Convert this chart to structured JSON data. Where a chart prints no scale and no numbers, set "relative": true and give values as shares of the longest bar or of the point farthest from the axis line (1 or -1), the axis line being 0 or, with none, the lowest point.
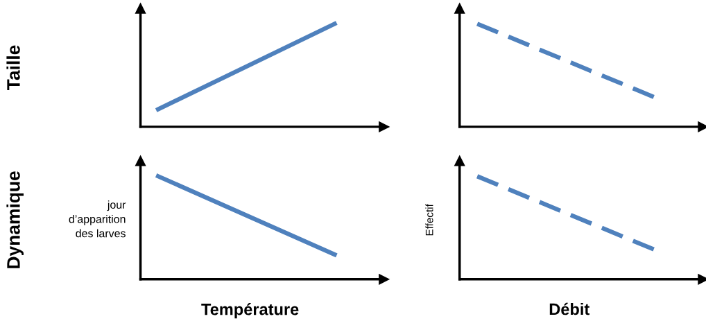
{
  "chart_data": [
    {
      "type": "line",
      "relative": true,
      "ylabel": "Taille",
      "categories": [
        null,
        null
      ],
      "line_style": "solid",
      "series": [
        {
          "color": "#4f81bd",
          "values": [
            0.17,
            1
          ]
        }
      ]
    },
    {
      "type": "line",
      "relative": true,
      "categories": [
        null,
        null
      ],
      "line_style": "dashed",
      "series": [
        {
          "color": "#4f81bd",
          "values": [
            1,
            0.29
          ]
        }
      ]
    },
    {
      "type": "line",
      "relative": true,
      "ylabel": "Dynamique",
      "xlabel": "Température",
      "annotations": [
        "jour\nd’apparition\ndes larves"
      ],
      "categories": [
        null,
        null
      ],
      "line_style": "solid",
      "series": [
        {
          "color": "#4f81bd",
          "values": [
            1,
            0.24
          ]
        }
      ]
    },
    {
      "type": "line",
      "relative": true,
      "ylabel": "Effectif",
      "xlabel": "Débit",
      "categories": [
        null,
        null
      ],
      "line_style": "dashed",
      "series": [
        {
          "color": "#4f81bd",
          "values": [
            1,
            0.29
          ]
        }
      ]
    }
  ]
}
